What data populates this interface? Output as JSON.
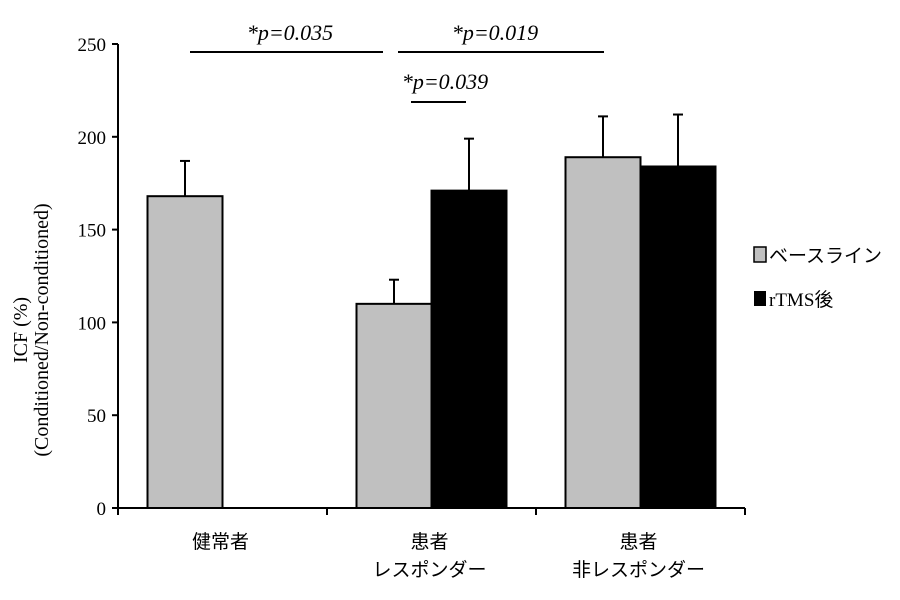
{
  "chart_data": {
    "type": "bar",
    "title": "",
    "xlabel": "",
    "ylabel": [
      "ICF (%)",
      "(Conditioned/Non-conditioned)"
    ],
    "ylim": [
      0,
      250
    ],
    "yticks": [
      0,
      50,
      100,
      150,
      200,
      250
    ],
    "yticklabels": [
      "0",
      "50",
      "100",
      "150",
      "200",
      "250"
    ],
    "categories": [
      [
        "健常者"
      ],
      [
        "患者",
        "レスポンダー"
      ],
      [
        "患者",
        "非レスポンダー"
      ]
    ],
    "series": [
      {
        "name": "ベースライン",
        "color": "#c0c0c0",
        "values": [
          168,
          110,
          189
        ],
        "error": [
          19,
          13,
          22
        ]
      },
      {
        "name": "rTMS後",
        "color": "#000000",
        "values": [
          null,
          171,
          184
        ],
        "error": [
          null,
          28,
          28
        ]
      }
    ],
    "legend_position": "right",
    "annotations": [
      {
        "label": "*p=0.035",
        "from": "健常者 ベースライン",
        "to": "患者レスポンダー ベースライン"
      },
      {
        "label": "*p=0.019",
        "from": "患者レスポンダー ベースライン",
        "to": "患者非レスポンダー ベースライン"
      },
      {
        "label": "*p=0.039",
        "from": "患者レスポンダー ベースライン",
        "to": "患者レスポンダー rTMS後"
      }
    ]
  }
}
